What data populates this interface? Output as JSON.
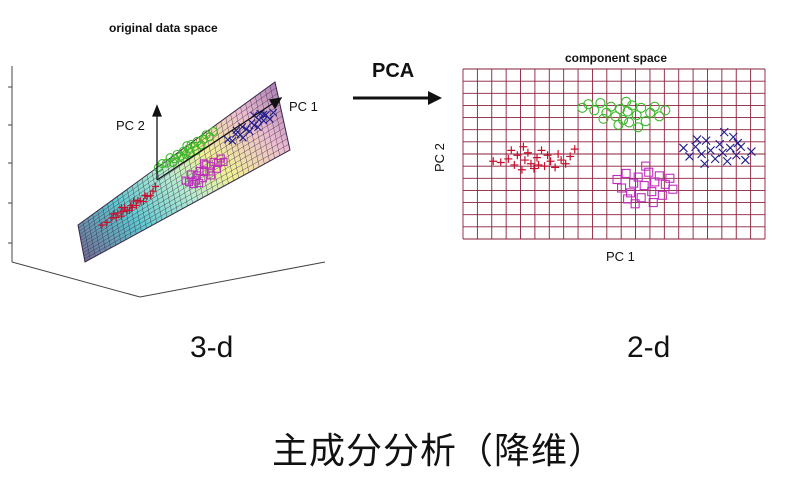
{
  "left_plot": {
    "title": "original data space",
    "pc1_label": "PC 1",
    "pc2_label": "PC 2"
  },
  "arrow": {
    "label": "PCA"
  },
  "right_plot": {
    "title": "component space",
    "xlabel": "PC 1",
    "ylabel": "PC 2"
  },
  "left_dim_label": "3-d",
  "right_dim_label": "2-d",
  "caption": "主成分分析（降维）",
  "colors": {
    "grid": "#8a1f3a",
    "plus": "#c8102e",
    "circle": "#3cb82c",
    "square": "#c02cc0",
    "cross": "#1e1e8c",
    "mesh_light": "#d8e8f0"
  },
  "chart_data": {
    "type": "scatter",
    "title": "component space",
    "xlabel": "PC 1",
    "ylabel": "PC 2",
    "xlim": [
      0,
      20
    ],
    "ylim": [
      0,
      14
    ],
    "grid": true,
    "series": [
      {
        "marker": "plus",
        "color": "#c8102e",
        "points": [
          [
            2.0,
            6.4
          ],
          [
            2.5,
            6.3
          ],
          [
            3.0,
            6.6
          ],
          [
            3.4,
            6.1
          ],
          [
            3.6,
            6.9
          ],
          [
            3.9,
            5.7
          ],
          [
            4.1,
            6.5
          ],
          [
            4.3,
            7.1
          ],
          [
            4.5,
            6.2
          ],
          [
            4.7,
            5.8
          ],
          [
            4.9,
            6.7
          ],
          [
            5.2,
            7.3
          ],
          [
            5.4,
            6.0
          ],
          [
            5.6,
            6.9
          ],
          [
            5.8,
            6.4
          ],
          [
            6.1,
            5.9
          ],
          [
            6.3,
            7.0
          ],
          [
            6.5,
            6.5
          ],
          [
            6.8,
            6.2
          ],
          [
            7.1,
            6.8
          ],
          [
            7.4,
            7.4
          ],
          [
            3.2,
            7.3
          ],
          [
            4.0,
            7.6
          ],
          [
            5.0,
            6.1
          ]
        ]
      },
      {
        "marker": "circle",
        "color": "#3cb82c",
        "points": [
          [
            7.9,
            10.8
          ],
          [
            8.3,
            11.1
          ],
          [
            8.7,
            10.6
          ],
          [
            9.1,
            11.2
          ],
          [
            9.5,
            10.4
          ],
          [
            9.8,
            10.9
          ],
          [
            10.1,
            10.1
          ],
          [
            10.4,
            10.7
          ],
          [
            10.6,
            9.8
          ],
          [
            10.9,
            10.5
          ],
          [
            11.2,
            11.0
          ],
          [
            11.5,
            10.2
          ],
          [
            11.8,
            10.8
          ],
          [
            12.1,
            9.7
          ],
          [
            12.4,
            10.4
          ],
          [
            12.7,
            10.9
          ],
          [
            13.0,
            10.1
          ],
          [
            13.4,
            10.6
          ],
          [
            9.3,
            9.9
          ],
          [
            10.3,
            9.4
          ],
          [
            11.0,
            9.6
          ],
          [
            11.6,
            9.2
          ],
          [
            10.8,
            11.3
          ]
        ]
      },
      {
        "marker": "square",
        "color": "#c02cc0",
        "points": [
          [
            10.2,
            4.9
          ],
          [
            10.5,
            4.2
          ],
          [
            10.8,
            5.4
          ],
          [
            11.1,
            3.8
          ],
          [
            11.3,
            4.6
          ],
          [
            11.6,
            5.1
          ],
          [
            11.8,
            3.4
          ],
          [
            12.0,
            4.4
          ],
          [
            12.3,
            5.5
          ],
          [
            12.5,
            3.9
          ],
          [
            12.7,
            4.7
          ],
          [
            13.0,
            5.2
          ],
          [
            13.2,
            3.6
          ],
          [
            13.4,
            4.5
          ],
          [
            13.7,
            5.0
          ],
          [
            13.9,
            4.1
          ],
          [
            11.4,
            2.9
          ],
          [
            12.6,
            3.0
          ],
          [
            10.9,
            3.3
          ],
          [
            12.1,
            6.0
          ]
        ]
      },
      {
        "marker": "cross",
        "color": "#1e1e8c",
        "points": [
          [
            14.6,
            7.5
          ],
          [
            15.0,
            6.8
          ],
          [
            15.4,
            7.6
          ],
          [
            15.8,
            7.0
          ],
          [
            16.1,
            8.1
          ],
          [
            16.4,
            7.3
          ],
          [
            16.7,
            6.6
          ],
          [
            17.0,
            7.8
          ],
          [
            17.2,
            7.1
          ],
          [
            17.5,
            6.4
          ],
          [
            17.7,
            7.5
          ],
          [
            17.9,
            8.4
          ],
          [
            18.1,
            6.9
          ],
          [
            18.4,
            7.6
          ],
          [
            18.7,
            6.5
          ],
          [
            19.1,
            7.2
          ],
          [
            16.0,
            6.2
          ],
          [
            17.3,
            8.8
          ],
          [
            15.5,
            8.2
          ],
          [
            18.2,
            7.9
          ]
        ]
      }
    ]
  }
}
